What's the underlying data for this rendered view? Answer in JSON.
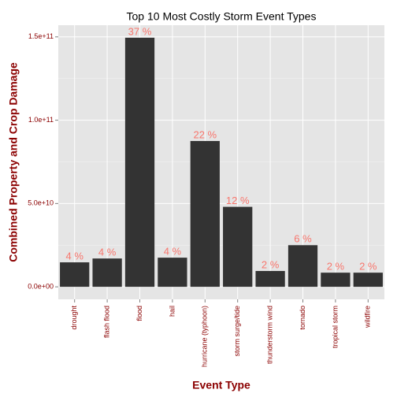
{
  "chart_data": {
    "type": "bar",
    "title": "Top 10 Most Costly Storm Event Types",
    "x_label": "Event Type",
    "y_label": "Combined Property and Crop Damage",
    "categories": [
      "drought",
      "flash flood",
      "flood",
      "hail",
      "hurricane (typhoon)",
      "storm surge/tide",
      "thunderstorm wind",
      "tornado",
      "tropical storm",
      "wildfire"
    ],
    "values": [
      14700000000,
      17000000000,
      149500000000,
      17500000000,
      87500000000,
      48000000000,
      9500000000,
      25000000000,
      8500000000,
      8500000000
    ],
    "annotations": [
      "4 %",
      "4 %",
      "37 %",
      "4 %",
      "22 %",
      "12 %",
      "2 %",
      "6 %",
      "2 %",
      "2 %"
    ],
    "color": "#333333",
    "annotation_color": "#f8766d",
    "ylim": [
      -7500000000,
      157000000000
    ],
    "yticks": [
      {
        "value": 0,
        "label": "0.0e+00"
      },
      {
        "value": 50000000000,
        "label": "5.0e+10"
      },
      {
        "value": 100000000000,
        "label": "1.0e+11"
      },
      {
        "value": 150000000000,
        "label": "1.5e+11"
      }
    ],
    "grid": true
  }
}
